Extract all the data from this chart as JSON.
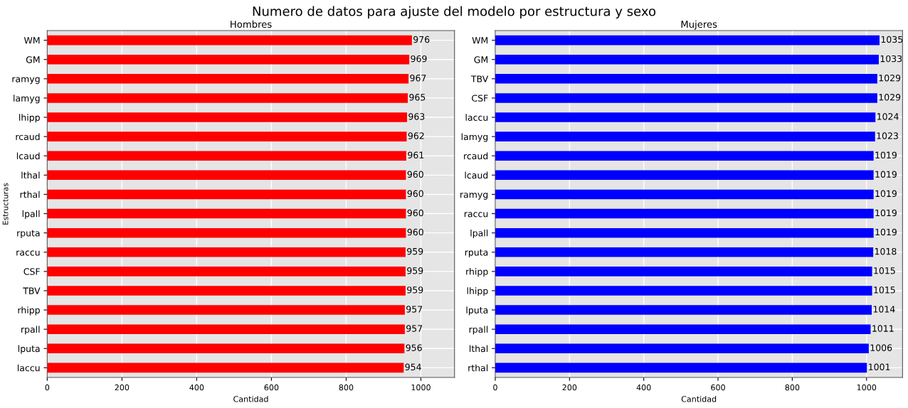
{
  "chart_data": [
    {
      "type": "bar",
      "orientation": "horizontal",
      "title": "Hombres",
      "xlabel": "Cantidad",
      "ylabel": "Estructuras",
      "annotations": [
        "Numero de datos para ajuste del modelo por estructura y sexo"
      ],
      "categories": [
        "WM",
        "GM",
        "ramyg",
        "lamyg",
        "lhipp",
        "rcaud",
        "lcaud",
        "lthal",
        "rthal",
        "lpall",
        "rputa",
        "raccu",
        "CSF",
        "TBV",
        "rhipp",
        "rpall",
        "lputa",
        "laccu"
      ],
      "series": [
        {
          "color": "#ff0000",
          "values": [
            976,
            969,
            967,
            965,
            963,
            962,
            961,
            960,
            960,
            960,
            960,
            959,
            959,
            959,
            957,
            957,
            956,
            954
          ]
        }
      ],
      "xlim": [
        0,
        1090
      ],
      "xticks": [
        0,
        200,
        400,
        600,
        800,
        1000
      ],
      "grid": true,
      "data_labels": true
    },
    {
      "type": "bar",
      "orientation": "horizontal",
      "title": "Mujeres",
      "xlabel": "Cantidad",
      "categories": [
        "WM",
        "GM",
        "TBV",
        "CSF",
        "laccu",
        "lamyg",
        "rcaud",
        "lcaud",
        "ramyg",
        "raccu",
        "lpall",
        "rputa",
        "rhipp",
        "lhipp",
        "lputa",
        "rpall",
        "lthal",
        "rthal"
      ],
      "series": [
        {
          "color": "#0000ff",
          "values": [
            1035,
            1033,
            1029,
            1029,
            1024,
            1023,
            1019,
            1019,
            1019,
            1019,
            1019,
            1018,
            1015,
            1015,
            1014,
            1011,
            1006,
            1001
          ]
        }
      ],
      "xlim": [
        0,
        1097
      ],
      "xticks": [
        0,
        200,
        400,
        600,
        800,
        1000
      ],
      "grid": true,
      "data_labels": true
    }
  ]
}
